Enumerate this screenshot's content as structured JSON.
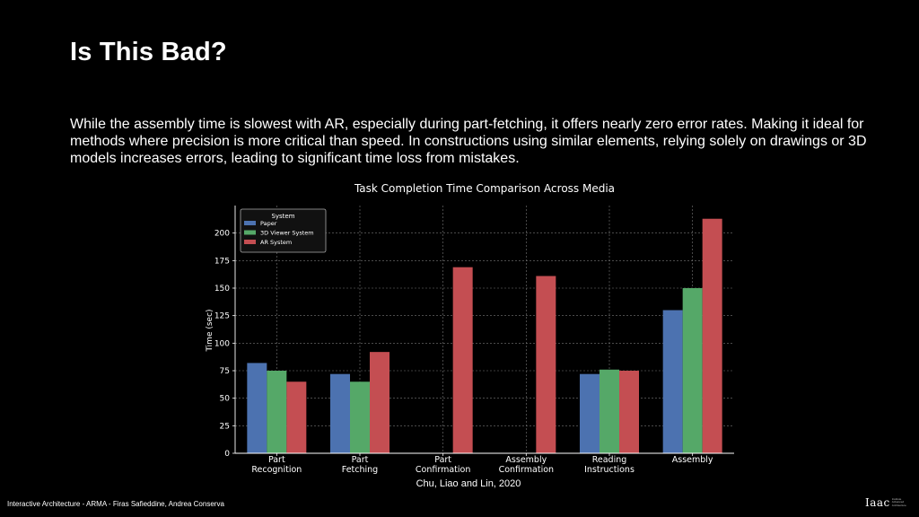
{
  "slide": {
    "title": "Is This Bad?",
    "body": "While the assembly time is slowest with AR, especially during part-fetching, it offers nearly zero error rates. Making it ideal for methods where precision is more critical than speed. In constructions using similar elements, relying solely on drawings or 3D models increases errors, leading to significant time loss from mistakes.",
    "caption": "Chu, Liao and Lin, 2020",
    "footer": "Interactive Architecture - ARMA - Firas Safieddine, Andrea Conserva",
    "logo": {
      "mark": "Iaac",
      "lines": [
        "Institute",
        "Advanced",
        "Architecture"
      ]
    }
  },
  "chart_data": {
    "type": "bar",
    "title": "Task Completion Time Comparison Across Media",
    "xlabel": "",
    "ylabel": "Time (sec)",
    "ylim": [
      0,
      225
    ],
    "yticks": [
      0,
      25,
      50,
      75,
      100,
      125,
      150,
      175,
      200
    ],
    "grid": true,
    "legend_title": "System",
    "legend_position": "top-left",
    "categories": [
      [
        "Part",
        "Recognition"
      ],
      [
        "Part",
        "Fetching"
      ],
      [
        "Part",
        "Confirmation"
      ],
      [
        "Assembly",
        "Confirmation"
      ],
      [
        "Reading",
        "Instructions"
      ],
      [
        "Assembly"
      ]
    ],
    "series": [
      {
        "name": "Paper",
        "color": "#4c72b0",
        "values": [
          82,
          72,
          null,
          null,
          72,
          130
        ]
      },
      {
        "name": "3D Viewer System",
        "color": "#55a868",
        "values": [
          75,
          65,
          null,
          null,
          76,
          150
        ]
      },
      {
        "name": "AR System",
        "color": "#c44e52",
        "values": [
          65,
          92,
          169,
          161,
          75,
          213
        ]
      }
    ]
  }
}
